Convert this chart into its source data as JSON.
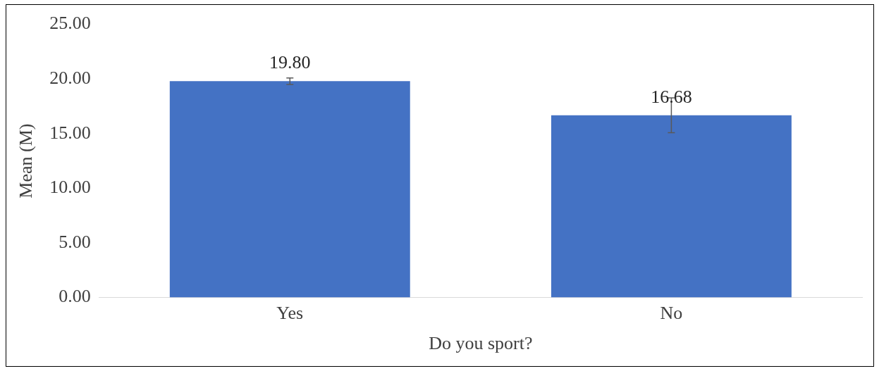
{
  "chart_data": {
    "type": "bar",
    "xlabel": "Do you sport?",
    "ylabel": "Mean (M)",
    "categories": [
      "Yes",
      "No"
    ],
    "values": [
      19.8,
      16.68
    ],
    "color": "#4472c4",
    "errors": [
      0.3,
      1.6
    ],
    "value_labels": [
      "19.80",
      "16.68"
    ],
    "ylim": [
      0,
      25
    ],
    "yticks": [
      {
        "value": 0,
        "label": "0.00"
      },
      {
        "value": 5,
        "label": "5.00"
      },
      {
        "value": 10,
        "label": "10.00"
      },
      {
        "value": 15,
        "label": "15.00"
      },
      {
        "value": 20,
        "label": "20.00"
      },
      {
        "value": 25,
        "label": "25.00"
      }
    ],
    "grid": false,
    "legend": false
  }
}
